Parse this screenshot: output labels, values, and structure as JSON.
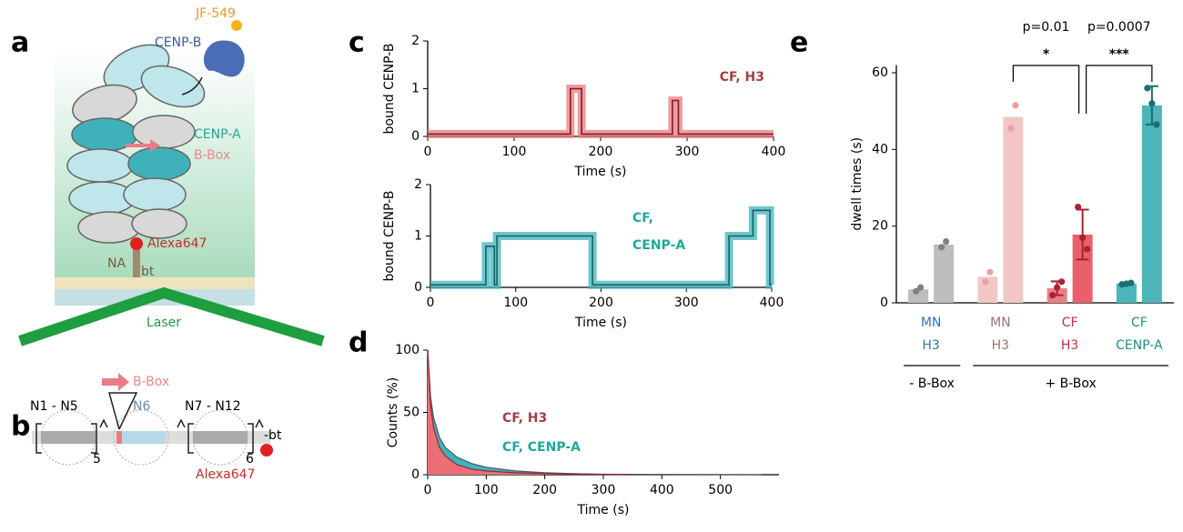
{
  "panel_labels": [
    "a",
    "b",
    "c",
    "d",
    "e"
  ],
  "diagram_a": {
    "dye": "JF-549",
    "protein": "CENP-B",
    "histone": "CENP-A",
    "motif": "B-Box",
    "fluor": "Alexa647",
    "anchor": "NA",
    "biotin": "bt",
    "light": "Laser"
  },
  "diagram_b": {
    "motif": "B-Box",
    "left": "N1 - N5",
    "middle": "N6",
    "right": "N7 - N12",
    "left_count": "5",
    "right_count": "6",
    "end": "-bt",
    "fluor": "Alexa647"
  },
  "chart_data": [
    {
      "type": "line",
      "ylabel": "bound CENP-B",
      "xlabel": "Time (s)",
      "xlim": [
        0,
        400
      ],
      "ylim": [
        0,
        2
      ],
      "xticks": [
        0,
        100,
        200,
        300,
        400
      ],
      "yticks": [
        0,
        1,
        2
      ],
      "series": [
        {
          "name_lines": [
            "CF, H3"
          ],
          "name_color": "#a33f45",
          "color": "#ec7a7e",
          "line_color": "#7a1f24",
          "x": [
            0,
            165,
            165,
            178,
            178,
            283,
            283,
            290,
            290,
            400
          ],
          "values": [
            0.05,
            0.05,
            1,
            1,
            0.05,
            0.05,
            0.75,
            0.75,
            0.05,
            0.05
          ]
        }
      ]
    },
    {
      "type": "line",
      "ylabel": "bound CENP-B",
      "xlabel": "Time (s)",
      "xlim": [
        0,
        400
      ],
      "ylim": [
        0,
        2
      ],
      "xticks": [
        0,
        100,
        200,
        300,
        400
      ],
      "yticks": [
        0,
        1,
        2
      ],
      "series": [
        {
          "name_lines": [
            "CF,",
            "CENP-A"
          ],
          "name_color": "#1fa89c",
          "color": "#3bb5bd",
          "line_color": "#1e5e63",
          "x": [
            0,
            65,
            65,
            75,
            75,
            78,
            78,
            190,
            190,
            350,
            350,
            378,
            378,
            398,
            398,
            400
          ],
          "values": [
            0.05,
            0.05,
            0.8,
            0.8,
            0.05,
            0.05,
            1,
            1,
            0.05,
            0.05,
            1,
            1,
            1.5,
            1.5,
            0.05,
            0.05
          ]
        }
      ]
    },
    {
      "type": "area",
      "ylabel": "Counts (%)",
      "xlabel": "Time (s)",
      "xlim": [
        0,
        600
      ],
      "ylim": [
        0,
        100
      ],
      "xticks": [
        0,
        100,
        200,
        300,
        400,
        500
      ],
      "yticks": [
        0,
        50,
        100
      ],
      "series": [
        {
          "name": "CF, CENP-A",
          "color": "#3bb5bd",
          "line_color": "#555555",
          "x": [
            0,
            5,
            10,
            20,
            30,
            50,
            75,
            100,
            150,
            200,
            250,
            300,
            400,
            500,
            570
          ],
          "values": [
            100,
            62,
            46,
            30,
            22,
            14,
            9,
            6,
            3,
            1.5,
            0.8,
            0.4,
            0.2,
            0.1,
            0
          ]
        },
        {
          "name": "CF, H3",
          "color": "#ec6f78",
          "line_color": "#8c2a30",
          "x": [
            0,
            5,
            10,
            20,
            30,
            50,
            75,
            100,
            150,
            200,
            250,
            300,
            350
          ],
          "values": [
            100,
            55,
            38,
            22,
            15,
            8,
            4.5,
            3,
            1.5,
            0.8,
            0.4,
            0.2,
            0
          ]
        }
      ],
      "legend_colors": [
        "#1fa89c",
        "#a33f45"
      ]
    },
    {
      "type": "bar",
      "ylabel": "dwell times (s)",
      "ylim": [
        0,
        62
      ],
      "yticks": [
        0,
        20,
        40,
        60
      ],
      "groups": [
        {
          "label": [
            "MN",
            "H3"
          ],
          "label_color": "#2e75b6",
          "point_color": "#808080",
          "bars": [
            {
              "value": 3.5,
              "color": "#bdbdbd",
              "points": [
                3,
                4
              ]
            },
            {
              "value": 15.2,
              "color": "#bdbdbd",
              "points": [
                14.5,
                16
              ]
            }
          ]
        },
        {
          "label": [
            "MN",
            "H3"
          ],
          "label_color": "#a07070",
          "point_color": "#e9a0a0",
          "bars": [
            {
              "value": 6.8,
              "color": "#f3c6c6",
              "points": [
                5.5,
                8
              ]
            },
            {
              "value": 48.5,
              "color": "#f3c6c6",
              "points": [
                45.5,
                51.5
              ]
            }
          ]
        },
        {
          "label": [
            "CF",
            "H3"
          ],
          "label_color": "#c0303a",
          "point_color": "#a8232e",
          "bars": [
            {
              "value": 3.8,
              "error": 1.8,
              "color": "#ec7f86",
              "points": [
                2,
                4,
                5.5
              ]
            },
            {
              "value": 17.8,
              "error": 6.5,
              "color": "#e9606a",
              "points": [
                25,
                17,
                14
              ]
            }
          ]
        },
        {
          "label": [
            "CF",
            "CENP-A"
          ],
          "label_color": "#1e8f8c",
          "point_color": "#1e6e6e",
          "bars": [
            {
              "value": 5,
              "error": 0.3,
              "color": "#4bb5b9",
              "points": [
                4.8,
                5,
                5.2
              ]
            },
            {
              "value": 51.5,
              "error": 5,
              "color": "#4bb5b9",
              "points": [
                56,
                52,
                46.5
              ]
            }
          ]
        }
      ],
      "group_labels": [
        "- B-Box",
        "+ B-Box"
      ],
      "annotations": [
        {
          "p": "p=0.01",
          "stars": "*"
        },
        {
          "p": "p=0.0007",
          "stars": "***"
        }
      ]
    }
  ]
}
